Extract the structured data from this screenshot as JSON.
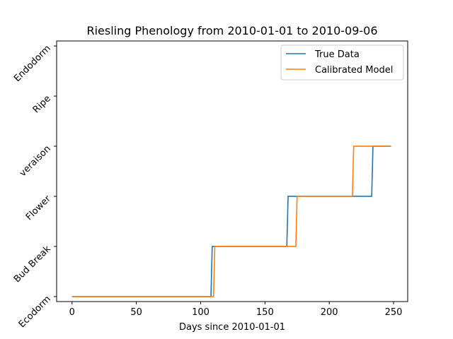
{
  "chart_data": {
    "type": "line",
    "title": "Riesling Phenology from 2010-01-01 to 2010-09-06",
    "xlabel": "Days since 2010-01-01",
    "ylabel": "",
    "xlim": [
      -12,
      261
    ],
    "ylim": [
      -0.1,
      5.1
    ],
    "x_ticks": [
      0,
      50,
      100,
      150,
      200,
      250
    ],
    "y_ticks": [
      0,
      1,
      2,
      3,
      4,
      5
    ],
    "y_tick_labels": [
      "Ecodorm",
      "Bud Break",
      "Flower",
      "veraison",
      "Ripe",
      "Endodorm"
    ],
    "grid": false,
    "legend_position": "top-right",
    "series": [
      {
        "name": "True Data",
        "color": "#1f77b4",
        "step_x": [
          0,
          108,
          109,
          167,
          168,
          233,
          234,
          248
        ],
        "step_y": [
          0,
          0,
          1,
          1,
          2,
          2,
          3,
          3
        ]
      },
      {
        "name": "Calibrated Model",
        "color": "#ff7f0e",
        "step_x": [
          0,
          110,
          111,
          174,
          175,
          218,
          219,
          248
        ],
        "step_y": [
          0,
          0,
          1,
          1,
          2,
          2,
          3,
          3
        ]
      }
    ]
  }
}
